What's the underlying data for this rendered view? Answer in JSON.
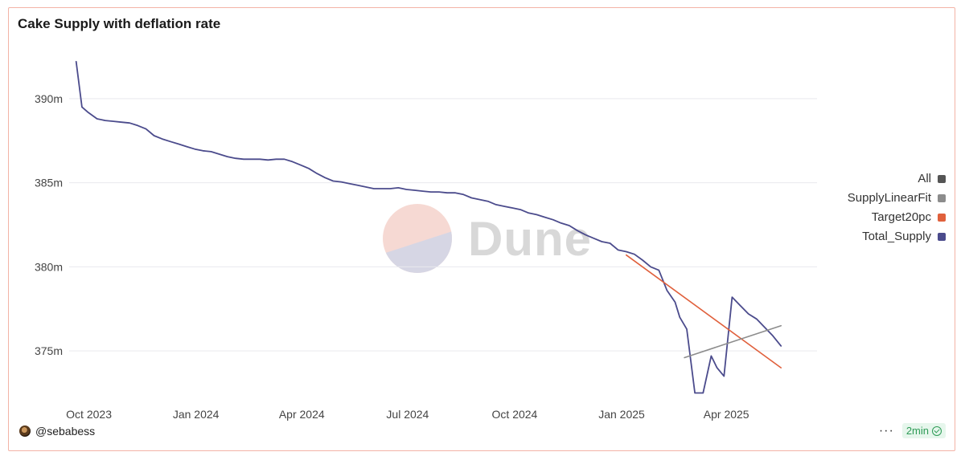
{
  "header": {
    "title": "Cake Supply with deflation rate"
  },
  "footer": {
    "user": "@sebabess",
    "refresh": "2min",
    "menu": "···"
  },
  "watermark": {
    "text": "Dune"
  },
  "legend": [
    {
      "label": "All",
      "color": "#555555"
    },
    {
      "label": "SupplyLinearFit",
      "color": "#8c8c8c"
    },
    {
      "label": "Target20pc",
      "color": "#e0603c"
    },
    {
      "label": "Total_Supply",
      "color": "#4b4b8c"
    }
  ],
  "chart_data": {
    "type": "line",
    "title": "Cake Supply with deflation rate",
    "xlabel": "",
    "ylabel": "",
    "ylim": [
      372.0,
      393.0
    ],
    "xlim": [
      "2023-09-14",
      "2025-06-18"
    ],
    "x_ticks": [
      {
        "date": "2023-10-01",
        "label": "Oct 2023"
      },
      {
        "date": "2024-01-01",
        "label": "Jan 2024"
      },
      {
        "date": "2024-04-01",
        "label": "Apr 2024"
      },
      {
        "date": "2024-07-01",
        "label": "Jul 2024"
      },
      {
        "date": "2024-10-01",
        "label": "Oct 2024"
      },
      {
        "date": "2025-01-01",
        "label": "Jan 2025"
      },
      {
        "date": "2025-04-01",
        "label": "Apr 2025"
      }
    ],
    "y_ticks": [
      {
        "value": 375,
        "label": "375m"
      },
      {
        "value": 380,
        "label": "380m"
      },
      {
        "value": 385,
        "label": "385m"
      },
      {
        "value": 390,
        "label": "390m"
      }
    ],
    "grid": true,
    "legend_position": "right",
    "series": [
      {
        "name": "Total_Supply",
        "color": "#4b4b8c",
        "points": [
          [
            "2023-09-20",
            392.2
          ],
          [
            "2023-09-25",
            389.5
          ],
          [
            "2023-09-30",
            389.2
          ],
          [
            "2023-10-08",
            388.8
          ],
          [
            "2023-10-15",
            388.7
          ],
          [
            "2023-10-22",
            388.65
          ],
          [
            "2023-10-29",
            388.6
          ],
          [
            "2023-11-05",
            388.55
          ],
          [
            "2023-11-12",
            388.4
          ],
          [
            "2023-11-19",
            388.2
          ],
          [
            "2023-11-26",
            387.8
          ],
          [
            "2023-12-03",
            387.6
          ],
          [
            "2023-12-10",
            387.45
          ],
          [
            "2023-12-17",
            387.3
          ],
          [
            "2023-12-24",
            387.15
          ],
          [
            "2023-12-31",
            387.0
          ],
          [
            "2024-01-07",
            386.9
          ],
          [
            "2024-01-14",
            386.85
          ],
          [
            "2024-01-21",
            386.7
          ],
          [
            "2024-01-28",
            386.55
          ],
          [
            "2024-02-04",
            386.45
          ],
          [
            "2024-02-11",
            386.4
          ],
          [
            "2024-02-18",
            386.4
          ],
          [
            "2024-02-25",
            386.4
          ],
          [
            "2024-03-03",
            386.35
          ],
          [
            "2024-03-10",
            386.4
          ],
          [
            "2024-03-17",
            386.4
          ],
          [
            "2024-03-24",
            386.25
          ],
          [
            "2024-03-31",
            386.05
          ],
          [
            "2024-04-07",
            385.85
          ],
          [
            "2024-04-14",
            385.55
          ],
          [
            "2024-04-21",
            385.3
          ],
          [
            "2024-04-28",
            385.1
          ],
          [
            "2024-05-05",
            385.05
          ],
          [
            "2024-05-12",
            384.95
          ],
          [
            "2024-05-19",
            384.85
          ],
          [
            "2024-05-26",
            384.75
          ],
          [
            "2024-06-02",
            384.65
          ],
          [
            "2024-06-09",
            384.65
          ],
          [
            "2024-06-16",
            384.65
          ],
          [
            "2024-06-23",
            384.7
          ],
          [
            "2024-06-30",
            384.6
          ],
          [
            "2024-07-07",
            384.55
          ],
          [
            "2024-07-14",
            384.5
          ],
          [
            "2024-07-21",
            384.45
          ],
          [
            "2024-07-28",
            384.45
          ],
          [
            "2024-08-04",
            384.4
          ],
          [
            "2024-08-11",
            384.4
          ],
          [
            "2024-08-18",
            384.3
          ],
          [
            "2024-08-25",
            384.1
          ],
          [
            "2024-09-01",
            384.0
          ],
          [
            "2024-09-08",
            383.9
          ],
          [
            "2024-09-15",
            383.7
          ],
          [
            "2024-09-22",
            383.6
          ],
          [
            "2024-09-29",
            383.5
          ],
          [
            "2024-10-06",
            383.4
          ],
          [
            "2024-10-13",
            383.2
          ],
          [
            "2024-10-20",
            383.1
          ],
          [
            "2024-10-27",
            382.95
          ],
          [
            "2024-11-03",
            382.8
          ],
          [
            "2024-11-10",
            382.6
          ],
          [
            "2024-11-17",
            382.45
          ],
          [
            "2024-11-24",
            382.15
          ],
          [
            "2024-12-01",
            381.9
          ],
          [
            "2024-12-08",
            381.7
          ],
          [
            "2024-12-15",
            381.5
          ],
          [
            "2024-12-22",
            381.4
          ],
          [
            "2024-12-29",
            381.0
          ],
          [
            "2025-01-05",
            380.9
          ],
          [
            "2025-01-12",
            380.75
          ],
          [
            "2025-01-19",
            380.4
          ],
          [
            "2025-01-26",
            380.0
          ],
          [
            "2025-02-02",
            379.8
          ],
          [
            "2025-02-09",
            378.6
          ],
          [
            "2025-02-16",
            377.9
          ],
          [
            "2025-02-20",
            377.0
          ],
          [
            "2025-02-26",
            376.3
          ],
          [
            "2025-03-05",
            372.5
          ],
          [
            "2025-03-12",
            372.5
          ],
          [
            "2025-03-19",
            374.7
          ],
          [
            "2025-03-24",
            374.0
          ],
          [
            "2025-03-30",
            373.5
          ],
          [
            "2025-04-06",
            378.2
          ],
          [
            "2025-04-13",
            377.7
          ],
          [
            "2025-04-20",
            377.2
          ],
          [
            "2025-04-27",
            376.9
          ],
          [
            "2025-05-04",
            376.4
          ],
          [
            "2025-05-11",
            375.9
          ],
          [
            "2025-05-18",
            375.3
          ]
        ]
      },
      {
        "name": "Target20pc",
        "color": "#e0603c",
        "points": [
          [
            "2025-01-05",
            380.7
          ],
          [
            "2025-05-18",
            374.0
          ]
        ]
      },
      {
        "name": "SupplyLinearFit",
        "color": "#8c8c8c",
        "points": [
          [
            "2025-02-24",
            374.6
          ],
          [
            "2025-05-18",
            376.5
          ]
        ]
      }
    ]
  }
}
